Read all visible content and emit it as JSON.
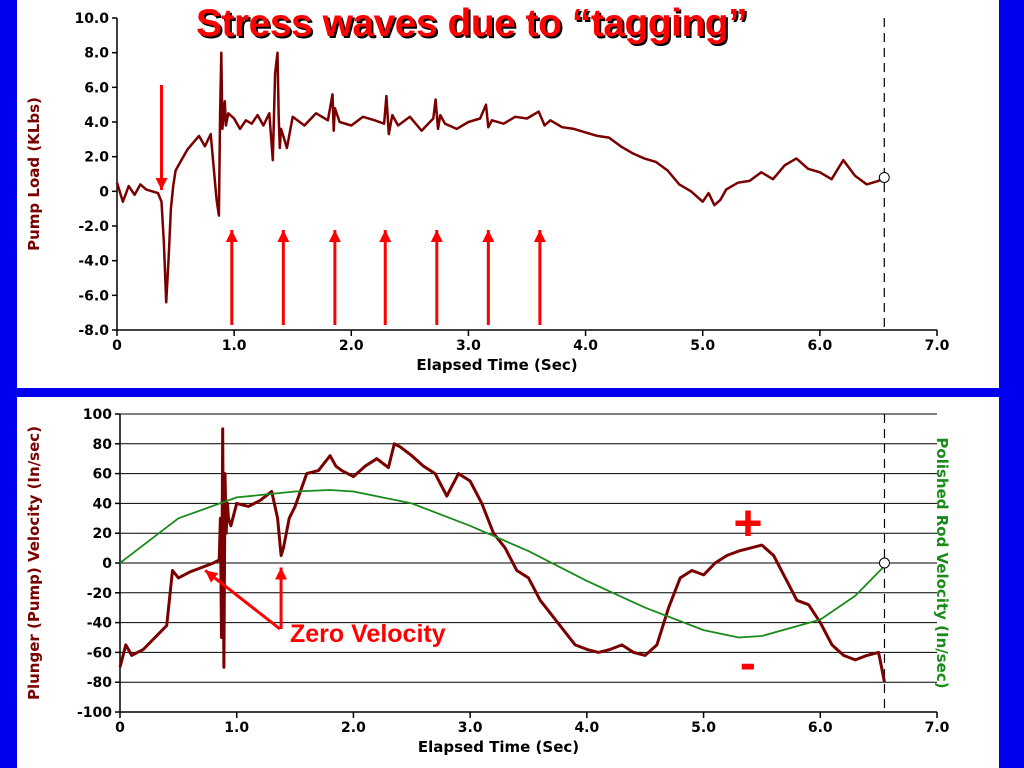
{
  "slide": {
    "title": "Stress waves due to “tagging”"
  },
  "colors": {
    "background": "#0000ee",
    "panel": "#ffffff",
    "title": "#ff0000",
    "plunger_line": "#7a0000",
    "polished_rod_line": "#1a8a1a",
    "annotation": "#ff0000"
  },
  "chart_data": [
    {
      "type": "line",
      "xlabel": "Elapsed Time (Sec)",
      "ylabel": "Pump Load (KLbs)",
      "xlim": [
        0,
        7.0
      ],
      "ylim": [
        -8.0,
        10.0
      ],
      "x_ticks": [
        "0",
        "1.0",
        "2.0",
        "3.0",
        "4.0",
        "5.0",
        "6.0",
        "7.0"
      ],
      "y_ticks": [
        "-8.0",
        "-6.0",
        "-4.0",
        "-2.0",
        "0",
        "2.0",
        "4.0",
        "6.0",
        "8.0",
        "10.0"
      ],
      "grid": false,
      "marker_line_x": 6.55,
      "series": [
        {
          "x": [
            0,
            0.05,
            0.1,
            0.15,
            0.2,
            0.25,
            0.3,
            0.35,
            0.38,
            0.4,
            0.42,
            0.44,
            0.46,
            0.48,
            0.5,
            0.55,
            0.6,
            0.65,
            0.7,
            0.75,
            0.8,
            0.85,
            0.87,
            0.88,
            0.89,
            0.9,
            0.91,
            0.92,
            0.93,
            0.95,
            1.0,
            1.05,
            1.1,
            1.15,
            1.2,
            1.25,
            1.3,
            1.33,
            1.35,
            1.37,
            1.38,
            1.39,
            1.4,
            1.42,
            1.45,
            1.5,
            1.6,
            1.7,
            1.8,
            1.84,
            1.85,
            1.86,
            1.9,
            2.0,
            2.1,
            2.2,
            2.28,
            2.3,
            2.32,
            2.35,
            2.4,
            2.5,
            2.6,
            2.7,
            2.72,
            2.74,
            2.76,
            2.8,
            2.9,
            3.0,
            3.1,
            3.15,
            3.17,
            3.2,
            3.3,
            3.4,
            3.5,
            3.6,
            3.65,
            3.7,
            3.8,
            3.9,
            4.0,
            4.1,
            4.2,
            4.3,
            4.4,
            4.5,
            4.6,
            4.7,
            4.8,
            4.9,
            5.0,
            5.05,
            5.1,
            5.15,
            5.2,
            5.3,
            5.4,
            5.5,
            5.6,
            5.7,
            5.8,
            5.9,
            6.0,
            6.1,
            6.2,
            6.3,
            6.4,
            6.5,
            6.55
          ],
          "values": [
            0.5,
            -0.6,
            0.3,
            -0.2,
            0.4,
            0.1,
            0.0,
            -0.1,
            -0.6,
            -3.0,
            -6.4,
            -4.0,
            -1.0,
            0.3,
            1.2,
            1.8,
            2.4,
            2.8,
            3.2,
            2.6,
            3.3,
            -0.5,
            -1.4,
            4.5,
            8.0,
            3.6,
            4.4,
            5.2,
            3.8,
            4.5,
            4.2,
            3.6,
            4.1,
            3.9,
            4.4,
            3.8,
            4.5,
            1.8,
            6.8,
            8.0,
            4.3,
            2.5,
            3.6,
            3.2,
            2.5,
            4.3,
            3.8,
            4.5,
            4.1,
            5.6,
            3.5,
            4.8,
            4.0,
            3.8,
            4.3,
            4.1,
            3.9,
            5.5,
            3.3,
            4.4,
            3.8,
            4.3,
            3.5,
            4.2,
            5.3,
            3.6,
            4.4,
            3.9,
            3.6,
            4.0,
            4.2,
            5.0,
            3.7,
            4.1,
            3.9,
            4.3,
            4.2,
            4.6,
            3.8,
            4.1,
            3.7,
            3.6,
            3.4,
            3.2,
            3.1,
            2.6,
            2.2,
            1.9,
            1.7,
            1.2,
            0.4,
            0.0,
            -0.6,
            -0.1,
            -0.8,
            -0.5,
            0.1,
            0.5,
            0.6,
            1.1,
            0.7,
            1.5,
            1.9,
            1.3,
            1.1,
            0.7,
            1.8,
            0.9,
            0.4,
            0.6,
            0.8
          ]
        }
      ]
    },
    {
      "type": "line",
      "xlabel": "Elapsed Time (Sec)",
      "ylabel": "Plunger (Pump) Velocity (In/sec)",
      "y2label": "Polished Rod Velocity (In/sec)",
      "xlim": [
        0,
        7.0
      ],
      "ylim": [
        -100,
        100
      ],
      "x_ticks": [
        "0",
        "1.0",
        "2.0",
        "3.0",
        "4.0",
        "5.0",
        "6.0",
        "7.0"
      ],
      "y_ticks": [
        "-100",
        "-80",
        "-60",
        "-40",
        "-20",
        "0",
        "20",
        "40",
        "60",
        "80",
        "100"
      ],
      "grid": true,
      "marker_line_x": 6.55,
      "series": [
        {
          "x": [
            0,
            0.05,
            0.1,
            0.2,
            0.3,
            0.4,
            0.45,
            0.5,
            0.55,
            0.6,
            0.7,
            0.8,
            0.85,
            0.86,
            0.87,
            0.88,
            0.89,
            0.9,
            0.91,
            0.92,
            0.93,
            0.95,
            1.0,
            1.1,
            1.2,
            1.3,
            1.35,
            1.38,
            1.4,
            1.45,
            1.5,
            1.6,
            1.7,
            1.8,
            1.85,
            1.9,
            2.0,
            2.1,
            2.2,
            2.3,
            2.35,
            2.4,
            2.5,
            2.6,
            2.7,
            2.8,
            2.9,
            3.0,
            3.1,
            3.2,
            3.3,
            3.4,
            3.5,
            3.6,
            3.7,
            3.8,
            3.9,
            4.0,
            4.1,
            4.2,
            4.3,
            4.4,
            4.5,
            4.6,
            4.7,
            4.8,
            4.9,
            5.0,
            5.1,
            5.2,
            5.3,
            5.4,
            5.5,
            5.6,
            5.7,
            5.8,
            5.9,
            6.0,
            6.1,
            6.2,
            6.3,
            6.4,
            6.5,
            6.55
          ],
          "values": [
            -70,
            -55,
            -62,
            -58,
            -50,
            -42,
            -5,
            -10,
            -8,
            -6,
            -3,
            0,
            2,
            30,
            -50,
            90,
            -70,
            60,
            20,
            40,
            30,
            25,
            40,
            38,
            42,
            48,
            30,
            5,
            10,
            30,
            38,
            60,
            62,
            72,
            65,
            62,
            58,
            65,
            70,
            64,
            80,
            78,
            72,
            65,
            60,
            45,
            60,
            55,
            40,
            20,
            10,
            -5,
            -10,
            -25,
            -35,
            -45,
            -55,
            -58,
            -60,
            -58,
            -55,
            -60,
            -62,
            -55,
            -30,
            -10,
            -5,
            -8,
            0,
            5,
            8,
            10,
            12,
            5,
            -10,
            -25,
            -28,
            -40,
            -55,
            -62,
            -65,
            -62,
            -60,
            -80
          ]
        },
        {
          "x": [
            0,
            0.5,
            1.0,
            1.5,
            1.8,
            2.0,
            2.5,
            3.0,
            3.5,
            4.0,
            4.5,
            5.0,
            5.3,
            5.5,
            6.0,
            6.3,
            6.55
          ],
          "values": [
            0,
            30,
            44,
            48,
            49,
            48,
            40,
            25,
            8,
            -12,
            -30,
            -45,
            -50,
            -49,
            -38,
            -22,
            -2
          ]
        }
      ]
    }
  ],
  "annotations": {
    "zero_velocity": "Zero Velocity",
    "plus": "+",
    "minus": "-"
  }
}
